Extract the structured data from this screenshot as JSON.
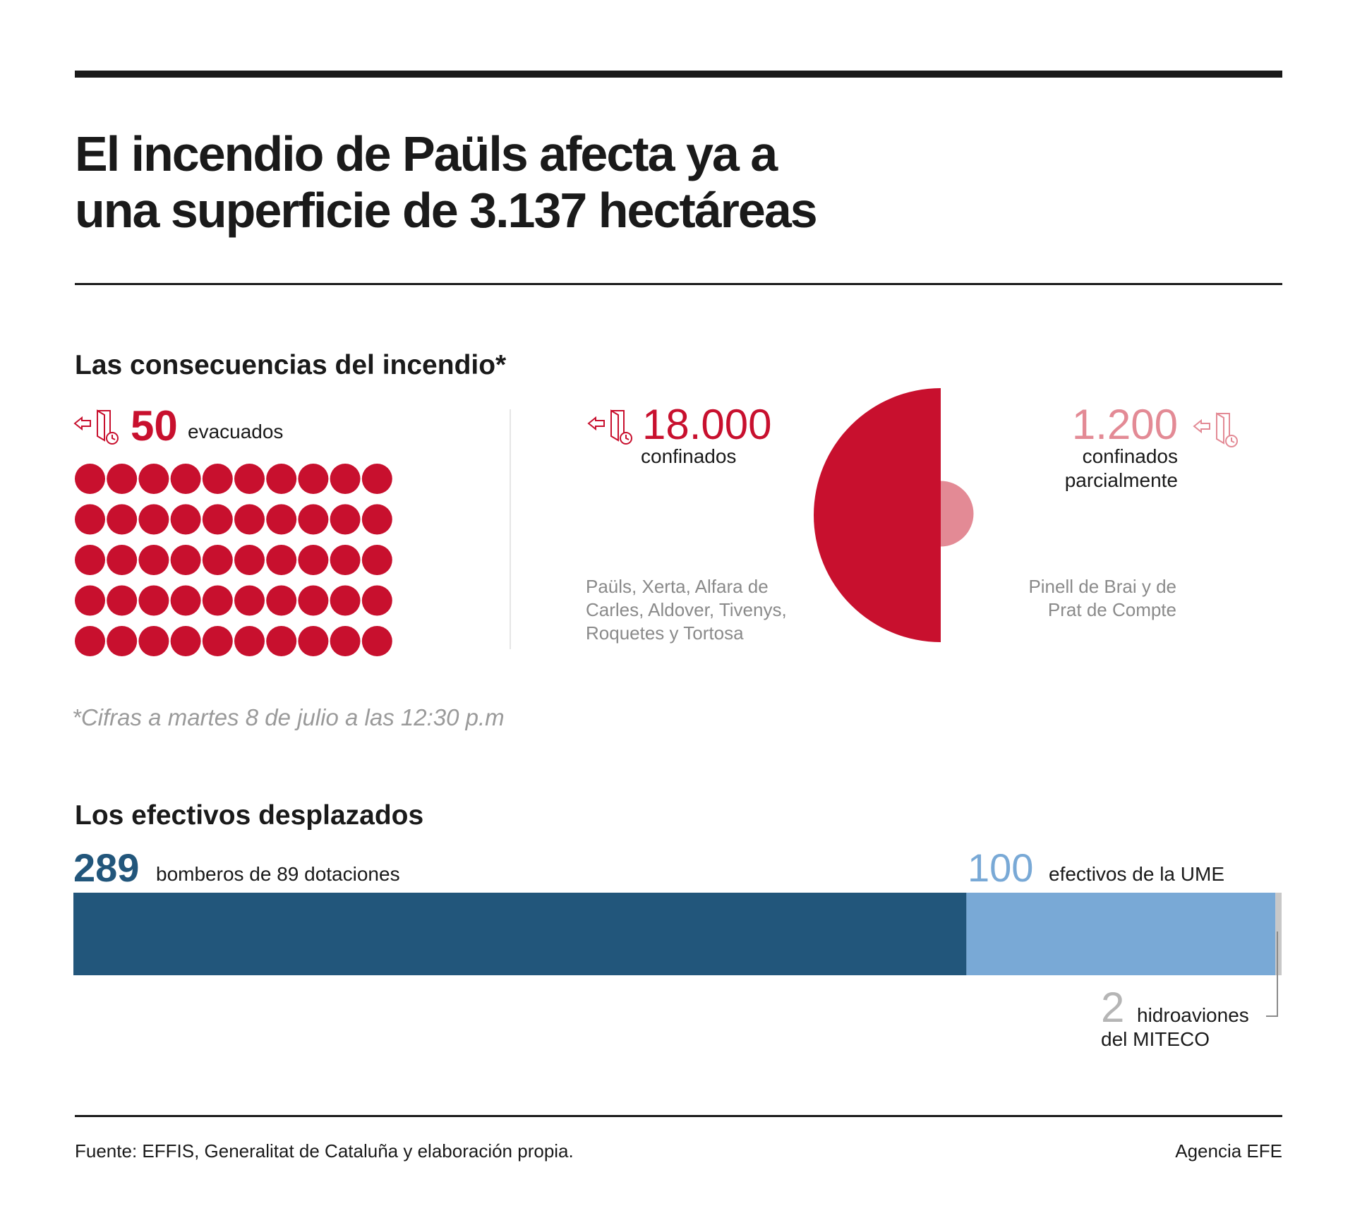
{
  "title_lines": [
    "El incendio de Paüls afecta ya a",
    "una superficie de 3.137 hectáreas"
  ],
  "section1_title": "Las consecuencias del incendio*",
  "section2_title": "Los efectivos desplazados",
  "note": "*Cifras a martes 8 de julio a las 12:30 p.m",
  "source": "Fuente: EFFIS, Generalitat de Cataluña y elaboración propia.",
  "agency": "Agencia EFE",
  "icons": {
    "evacuation": "door-exit-clock-icon"
  },
  "colors": {
    "red": "#c8102e",
    "pink": "#e38a95",
    "dark_blue": "#22567b",
    "light_blue": "#79a9d6",
    "gray": "#c8c8c8"
  },
  "chart_data": [
    {
      "type": "pictogram",
      "value": 50,
      "value_label": "50",
      "label": "evacuados",
      "rows": 5,
      "cols": 10
    },
    {
      "type": "semicircle-area",
      "series": [
        {
          "value": 18000,
          "value_label": "18.000",
          "label": "confinados",
          "places": [
            "Paüls, Xerta, Alfara de",
            "Carles, Aldover, Tivenys,",
            "Roquetes y Tortosa"
          ],
          "color": "#c8102e"
        },
        {
          "value": 1200,
          "value_label": "1.200",
          "label_lines": [
            "confinados",
            "parcialmente"
          ],
          "places": [
            "Pinell de Brai y de",
            "Prat de Compte"
          ],
          "color": "#e38a95"
        }
      ]
    },
    {
      "type": "stacked-bar",
      "series": [
        {
          "value": 289,
          "value_label": "289",
          "label": "bomberos de 89 dotaciones",
          "color": "#22567b"
        },
        {
          "value": 100,
          "value_label": "100",
          "label": "efectivos de la UME",
          "color": "#79a9d6"
        },
        {
          "value": 2,
          "value_label": "2",
          "label_lines": [
            "hidroaviones",
            "del MITECO"
          ],
          "color": "#c8c8c8"
        }
      ]
    }
  ]
}
